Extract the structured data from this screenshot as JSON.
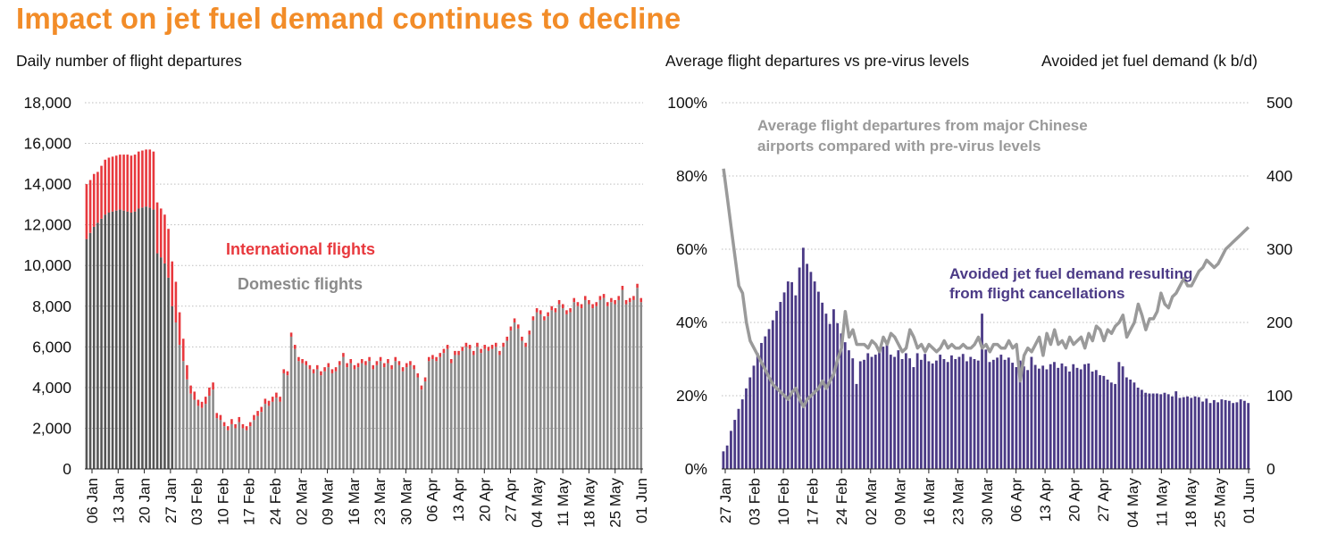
{
  "page": {
    "title": "Impact on jet fuel demand continues to decline"
  },
  "left_chart": {
    "subtitle": "Daily number of flight departures",
    "annotation_international": "International flights",
    "annotation_domestic": "Domestic flights"
  },
  "right_chart": {
    "subtitle_left": "Average flight departures vs pre-virus levels",
    "subtitle_right": "Avoided jet fuel demand (k b/d)",
    "annotation_departures_line1": "Average flight departures from major Chinese",
    "annotation_departures_line2": "airports compared with pre-virus levels",
    "annotation_fuel_line1": "Avoided jet fuel demand resulting",
    "annotation_fuel_line2": "from flight cancellations"
  },
  "colors": {
    "title": "#f28c28",
    "domestic": "#8a8a8a",
    "international": "#e8383d",
    "fuel": "#4b3a86",
    "departures_line": "#9a9a9a",
    "grid": "#bdbdbd"
  },
  "chart_data": [
    {
      "type": "bar",
      "stacked": true,
      "title": "Daily number of flight departures",
      "x_tick_labels": [
        "06 Jan",
        "13 Jan",
        "20 Jan",
        "27 Jan",
        "03 Feb",
        "10 Feb",
        "17 Feb",
        "24 Feb",
        "02 Mar",
        "09 Mar",
        "16 Mar",
        "23 Mar",
        "30 Mar",
        "06 Apr",
        "13 Apr",
        "20 Apr",
        "27 Apr",
        "04 May",
        "11 May",
        "18 May",
        "25 May",
        "01 Jun"
      ],
      "y_ticks": [
        0,
        2000,
        4000,
        6000,
        8000,
        10000,
        12000,
        14000,
        16000,
        18000
      ],
      "ylim": [
        0,
        18000
      ],
      "grid": true,
      "series": [
        {
          "name": "Domestic flights",
          "values": [
            11300,
            11600,
            11900,
            12100,
            12300,
            12500,
            12600,
            12650,
            12700,
            12750,
            12700,
            12650,
            12600,
            12650,
            12800,
            12850,
            12900,
            12850,
            12750,
            10600,
            10400,
            10100,
            9400,
            8000,
            7200,
            6100,
            5300,
            4400,
            3700,
            3400,
            3100,
            3000,
            3200,
            3600,
            3900,
            2500,
            2400,
            2100,
            1900,
            2200,
            2000,
            2300,
            2000,
            1900,
            2100,
            2400,
            2600,
            2800,
            3200,
            3100,
            3300,
            3500,
            3300,
            4700,
            4600,
            6500,
            5900,
            5300,
            5200,
            5100,
            4900,
            4700,
            4900,
            4600,
            4800,
            5000,
            4700,
            4800,
            5100,
            5500,
            5000,
            5200,
            4900,
            5000,
            5200,
            5100,
            5300,
            4900,
            5100,
            5300,
            5000,
            5200,
            4900,
            5300,
            5100,
            4800,
            5000,
            5100,
            4900,
            4500,
            3900,
            4300,
            5300,
            5400,
            5300,
            5500,
            5700,
            5900,
            5200,
            5600,
            5600,
            5800,
            6000,
            5900,
            5600,
            6000,
            5700,
            5900,
            5800,
            5900,
            6000,
            5600,
            6000,
            6300,
            6800,
            7200,
            6900,
            6300,
            6000,
            6600,
            7300,
            7700,
            7600,
            7300,
            7500,
            7800,
            7700,
            8100,
            7900,
            7600,
            7700,
            8200,
            8000,
            7900,
            8300,
            8100,
            7900,
            8000,
            8300,
            8400,
            8000,
            8200,
            8100,
            8300,
            8800,
            8100,
            8200,
            8300,
            8900,
            8200
          ]
        },
        {
          "name": "International flights",
          "values": [
            2700,
            2600,
            2600,
            2500,
            2600,
            2700,
            2700,
            2700,
            2700,
            2700,
            2750,
            2800,
            2800,
            2800,
            2800,
            2800,
            2800,
            2850,
            2850,
            2500,
            2400,
            2400,
            2400,
            2200,
            2000,
            1600,
            1100,
            700,
            400,
            400,
            300,
            300,
            350,
            400,
            350,
            250,
            250,
            200,
            200,
            250,
            200,
            250,
            200,
            200,
            200,
            250,
            250,
            250,
            250,
            250,
            250,
            250,
            250,
            200,
            200,
            200,
            200,
            200,
            200,
            200,
            200,
            200,
            200,
            200,
            200,
            200,
            200,
            200,
            200,
            200,
            200,
            200,
            200,
            200,
            200,
            200,
            200,
            200,
            200,
            200,
            200,
            200,
            200,
            200,
            200,
            200,
            200,
            200,
            200,
            200,
            200,
            200,
            200,
            200,
            200,
            200,
            200,
            200,
            200,
            200,
            200,
            200,
            200,
            200,
            200,
            200,
            200,
            200,
            200,
            200,
            200,
            200,
            200,
            200,
            200,
            200,
            200,
            200,
            200,
            200,
            200,
            200,
            200,
            200,
            200,
            200,
            200,
            200,
            200,
            200,
            200,
            200,
            200,
            200,
            200,
            200,
            200,
            200,
            200,
            200,
            200,
            200,
            200,
            200,
            200,
            200,
            200,
            200,
            200,
            200
          ]
        }
      ]
    },
    {
      "type": "bar",
      "secondary_line": true,
      "x_tick_labels": [
        "27 Jan",
        "03 Feb",
        "10 Feb",
        "17 Feb",
        "24 Feb",
        "02 Mar",
        "09 Mar",
        "16 Mar",
        "23 Mar",
        "30 Mar",
        "06 Apr",
        "13 Apr",
        "20 Apr",
        "27 Apr",
        "04 May",
        "11 May",
        "18 May",
        "25 May",
        "01 Jun"
      ],
      "y_left_ticks": [
        "0%",
        "20%",
        "40%",
        "60%",
        "80%",
        "100%"
      ],
      "y_left_lim": [
        0,
        100
      ],
      "y_right_ticks": [
        0,
        100,
        200,
        300,
        400,
        500
      ],
      "y_right_lim": [
        0,
        500
      ],
      "grid": true,
      "series": [
        {
          "name": "Avoided jet fuel demand resulting from flight cancellations",
          "type": "bar",
          "axis": "right",
          "values": [
            24,
            32,
            52,
            67,
            82,
            95,
            110,
            125,
            141,
            158,
            172,
            181,
            191,
            203,
            216,
            228,
            241,
            256,
            255,
            237,
            275,
            302,
            280,
            269,
            256,
            242,
            227,
            212,
            198,
            218,
            199,
            185,
            173,
            162,
            151,
            116,
            147,
            149,
            158,
            153,
            156,
            161,
            167,
            172,
            156,
            153,
            162,
            150,
            158,
            151,
            139,
            158,
            149,
            157,
            147,
            144,
            148,
            156,
            150,
            146,
            155,
            150,
            153,
            157,
            147,
            153,
            150,
            148,
            212,
            163,
            146,
            149,
            152,
            156,
            149,
            152,
            145,
            139,
            148,
            140,
            135,
            153,
            142,
            137,
            141,
            136,
            143,
            146,
            138,
            144,
            140,
            133,
            143,
            138,
            136,
            143,
            144,
            133,
            135,
            128,
            127,
            122,
            118,
            116,
            146,
            140,
            125,
            122,
            118,
            111,
            108,
            104,
            103,
            103,
            103,
            102,
            104,
            102,
            99,
            106,
            97,
            98,
            99,
            97,
            99,
            98,
            92,
            96,
            90,
            94,
            91,
            95,
            94,
            93,
            90,
            91,
            95,
            93,
            90
          ]
        },
        {
          "name": "Average flight departures from major Chinese airports compared with pre-virus levels",
          "type": "line",
          "axis": "left",
          "values": [
            82,
            74,
            66,
            58,
            50,
            48,
            40,
            35,
            33,
            31,
            29,
            27,
            25,
            23,
            22,
            21,
            20,
            19,
            21,
            22,
            19,
            17,
            19,
            20,
            21,
            22,
            24,
            22,
            24,
            26,
            30,
            33,
            43,
            36,
            38,
            34,
            34,
            34,
            33,
            35,
            34,
            32,
            36,
            34,
            37,
            36,
            34,
            32,
            33,
            38,
            36,
            33,
            34,
            32,
            34,
            33,
            32,
            33,
            35,
            33,
            34,
            33,
            33,
            34,
            33,
            33,
            34,
            36,
            33,
            34,
            32,
            34,
            34,
            33,
            33,
            35,
            33,
            34,
            24,
            31,
            33,
            32,
            34,
            36,
            31,
            37,
            34,
            38,
            34,
            35,
            33,
            36,
            34,
            35,
            36,
            33,
            37,
            35,
            39,
            38,
            35,
            38,
            37,
            39,
            40,
            42,
            36,
            38,
            40,
            45,
            42,
            38,
            41,
            41,
            43,
            48,
            45,
            44,
            47,
            48,
            50,
            52,
            50,
            50,
            52,
            54,
            55,
            57,
            56,
            55,
            56,
            58,
            60,
            61,
            62,
            63,
            64,
            65,
            66
          ]
        }
      ]
    }
  ]
}
